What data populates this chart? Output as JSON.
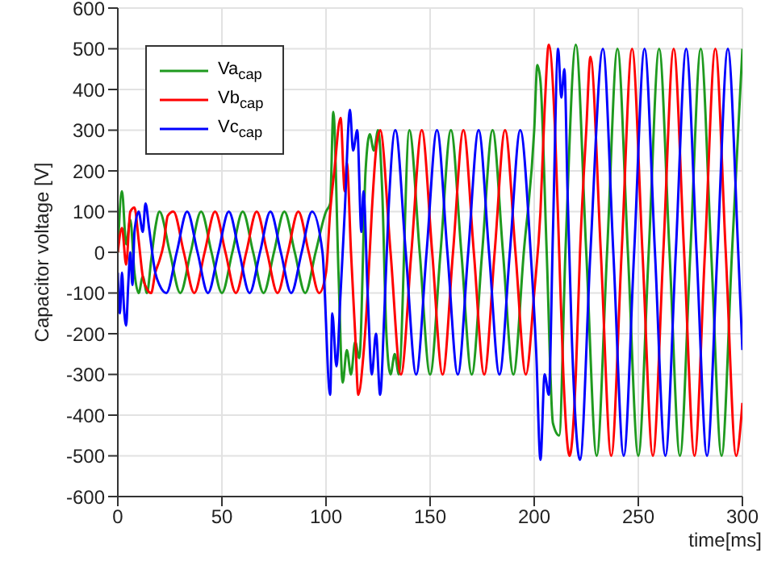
{
  "chart_data": {
    "type": "line",
    "ylabel": "Capacitor voltage [V]",
    "xlabel": "time[ms]",
    "xlim": [
      0,
      300
    ],
    "xticks": [
      0,
      50,
      100,
      150,
      200,
      250,
      300
    ],
    "ylim": [
      -600,
      600
    ],
    "yticks": [
      -600,
      -500,
      -400,
      -300,
      -200,
      -100,
      0,
      100,
      200,
      300,
      400,
      500,
      600
    ],
    "grid": true,
    "legend": "top left",
    "marker": "none",
    "line_style": "solid",
    "series": [
      {
        "name": "Va$_{cap}$",
        "color": "#1f9a1f",
        "x": [
          0,
          2,
          4,
          6,
          8,
          10,
          12,
          14,
          16,
          18,
          20,
          25,
          30,
          35,
          40,
          45,
          50,
          55,
          60,
          65,
          70,
          75,
          80,
          85,
          90,
          95,
          100,
          102,
          103.5,
          106,
          108,
          110,
          112,
          114,
          116,
          119,
          121,
          123,
          125,
          127,
          129,
          131,
          133,
          135,
          140,
          145,
          150,
          155,
          160,
          165,
          170,
          175,
          180,
          185,
          190,
          195,
          200,
          201.5,
          203,
          206,
          209,
          212,
          215,
          220,
          225,
          230,
          235,
          240,
          245,
          250,
          255,
          260,
          265,
          270,
          275,
          280,
          285,
          290,
          295,
          300
        ],
        "values": [
          0,
          150,
          20,
          80,
          -50,
          -100,
          -60,
          -100,
          -20,
          60,
          100,
          0,
          -100,
          0,
          100,
          0,
          -100,
          0,
          100,
          0,
          -100,
          0,
          100,
          0,
          -100,
          0,
          100,
          120,
          345,
          -50,
          -320,
          -240,
          -300,
          -220,
          -260,
          200,
          290,
          250,
          300,
          150,
          -200,
          -300,
          -250,
          -300,
          300,
          0,
          -300,
          0,
          300,
          0,
          -300,
          0,
          300,
          0,
          -300,
          0,
          300,
          460,
          420,
          0,
          -420,
          -450,
          0,
          510,
          0,
          -500,
          0,
          500,
          0,
          -500,
          0,
          500,
          0,
          -500,
          0,
          500,
          0,
          -500,
          0,
          500
        ]
      },
      {
        "name": "Vb$_{cap}$",
        "color": "#ff0000",
        "x": [
          0,
          2,
          4,
          6,
          8,
          10,
          12,
          14,
          16,
          18,
          20,
          22,
          24,
          26.7,
          31.7,
          36.7,
          41.7,
          46.7,
          51.7,
          56.7,
          61.7,
          66.7,
          71.7,
          76.7,
          81.7,
          86.7,
          91.7,
          96.7,
          100,
          102,
          104,
          107,
          109,
          110,
          112,
          114,
          115.5,
          118,
          120,
          122,
          124,
          126,
          131,
          136,
          141,
          146,
          151,
          156,
          161,
          166,
          171,
          176,
          181,
          186,
          191,
          196,
          200,
          203,
          205,
          207,
          210,
          212,
          214,
          217,
          220,
          222,
          225,
          227,
          232,
          237,
          242,
          247,
          252,
          257,
          262,
          267,
          272,
          277,
          282,
          287,
          292,
          297,
          300
        ],
        "values": [
          0,
          60,
          -30,
          100,
          110,
          30,
          -60,
          -90,
          -100,
          -50,
          -20,
          20,
          90,
          100,
          0,
          -100,
          0,
          100,
          0,
          -100,
          0,
          100,
          0,
          -100,
          0,
          100,
          0,
          -100,
          -50,
          100,
          200,
          330,
          150,
          220,
          0,
          -200,
          -350,
          -250,
          -100,
          100,
          250,
          300,
          0,
          -300,
          0,
          300,
          0,
          -300,
          0,
          300,
          0,
          -300,
          0,
          300,
          0,
          -300,
          -100,
          100,
          350,
          510,
          300,
          0,
          -300,
          -500,
          -300,
          0,
          300,
          480,
          0,
          -500,
          0,
          500,
          0,
          -500,
          0,
          500,
          0,
          -500,
          0,
          500,
          0,
          -500,
          -370
        ]
      },
      {
        "name": "Vc$_{cap}$",
        "color": "#0000ff",
        "x": [
          0,
          1,
          2,
          3,
          4,
          5,
          6,
          7,
          8,
          10,
          12,
          13.3,
          15,
          18,
          20,
          23.3,
          28.3,
          33.3,
          38.3,
          43.3,
          48.3,
          53.3,
          58.3,
          63.3,
          68.3,
          73.3,
          78.3,
          83.3,
          88.3,
          93.3,
          98.3,
          102,
          103,
          105,
          107,
          109,
          111.5,
          113,
          115,
          117,
          118,
          120,
          122,
          124,
          126,
          128,
          130,
          133.3,
          138.3,
          143.3,
          148.3,
          153.3,
          158.3,
          163.3,
          168.3,
          173.3,
          178.3,
          183.3,
          188.3,
          193.3,
          198.3,
          201,
          203,
          205,
          207,
          209,
          211.5,
          213,
          214.5,
          216,
          218,
          222,
          227,
          233,
          238,
          243,
          248,
          253,
          258,
          263,
          268,
          273,
          278,
          283,
          288,
          293,
          298,
          300
        ],
        "values": [
          -50,
          -150,
          -50,
          -140,
          -180,
          -80,
          0,
          -80,
          50,
          100,
          50,
          120,
          60,
          -50,
          -80,
          -100,
          0,
          100,
          0,
          -100,
          0,
          100,
          0,
          -100,
          0,
          100,
          0,
          -100,
          0,
          100,
          0,
          -350,
          -150,
          -280,
          -100,
          100,
          350,
          250,
          300,
          50,
          150,
          -100,
          -300,
          -200,
          -350,
          -150,
          100,
          300,
          0,
          -300,
          0,
          300,
          0,
          -300,
          0,
          300,
          0,
          -300,
          0,
          300,
          0,
          -250,
          -510,
          -300,
          -350,
          50,
          500,
          380,
          450,
          150,
          -200,
          -510,
          0,
          500,
          0,
          -500,
          0,
          500,
          0,
          -500,
          0,
          500,
          0,
          -500,
          0,
          500,
          0,
          -240
        ]
      }
    ]
  }
}
